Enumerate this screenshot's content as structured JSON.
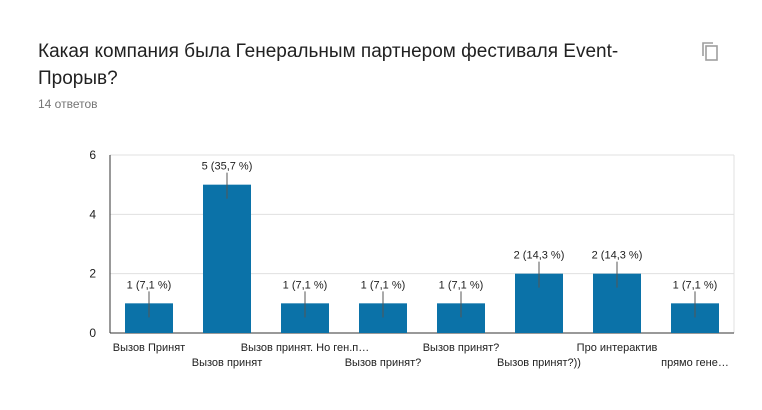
{
  "question": {
    "title": "Какая компания была Генеральным партнером фестиваля Event-Прорыв?",
    "responses": "14 ответов"
  },
  "icons": {
    "copy": "copy-icon"
  },
  "colors": {
    "bar": "#0b72a8",
    "grid": "#e0e0e0",
    "axis": "#333333",
    "text": "#212121",
    "muted": "#757575"
  },
  "chart_data": {
    "type": "bar",
    "categories": [
      "Вызов Принят",
      "Вызов принят",
      "Вызов принят. Но ген.п…",
      "Вызов принят?",
      "Вызов принят?",
      "Вызов принят?))",
      "Про интерактив",
      "прямо гене…"
    ],
    "values": [
      1,
      5,
      1,
      1,
      1,
      2,
      2,
      1
    ],
    "data_labels": [
      "1 (7,1 %)",
      "5 (35,7 %)",
      "1 (7,1 %)",
      "1 (7,1 %)",
      "1 (7,1 %)",
      "2 (14,3 %)",
      "2 (14,3 %)",
      "1 (7,1 %)"
    ],
    "ylim": [
      0,
      6
    ],
    "yticks": [
      0,
      2,
      4,
      6
    ],
    "grid": true
  }
}
